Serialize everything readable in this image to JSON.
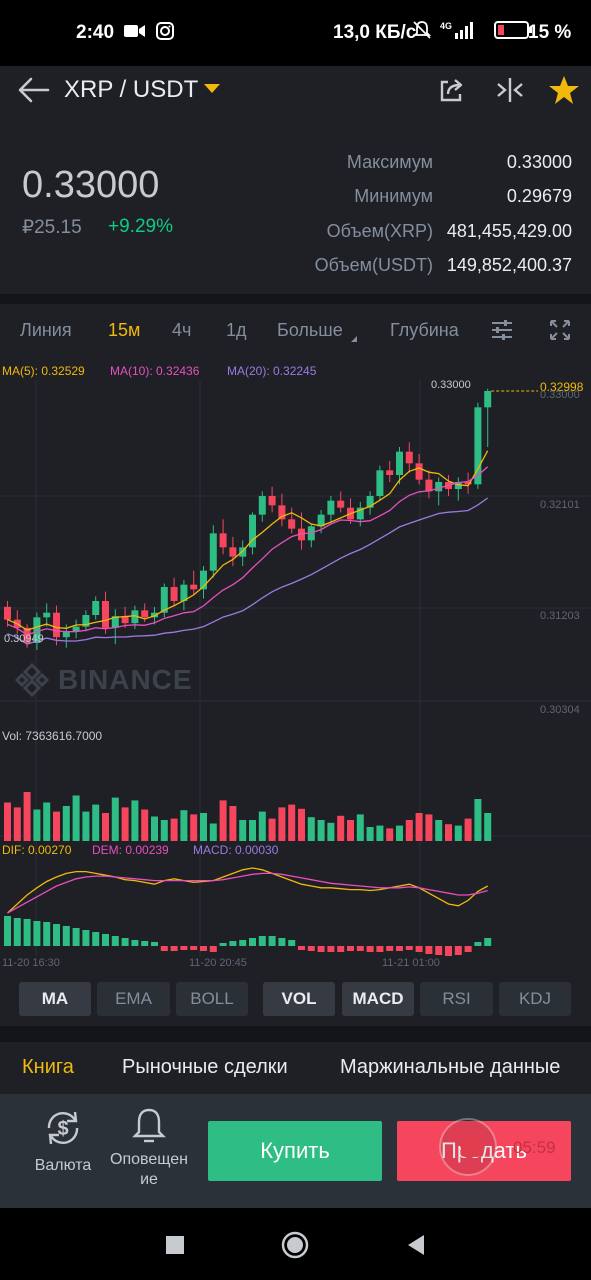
{
  "status_bar": {
    "time": "2:40",
    "network_speed": "13,0 КБ/с",
    "network_type": "4G",
    "battery": "15 %",
    "icons": [
      "video-camera-icon",
      "instagram-icon",
      "bell-muted-icon",
      "signal-icon",
      "battery-icon"
    ]
  },
  "header": {
    "pair": "XRP / USDT",
    "icons": [
      "back-arrow-icon",
      "share-icon",
      "compare-icon",
      "star-icon"
    ],
    "accent": "#f0b90b"
  },
  "ticker": {
    "last_price": "0.33000",
    "fiat_price": "₽25.15",
    "change": "+9.29%",
    "stats": [
      {
        "label": "Максимум",
        "value": "0.33000"
      },
      {
        "label": "Минимум",
        "value": "0.29679"
      },
      {
        "label": "Объем(XRP)",
        "value": "481,455,429.00"
      },
      {
        "label": "Объем(USDT)",
        "value": "149,852,400.37"
      }
    ]
  },
  "intervals": {
    "items": [
      "Линия",
      "15м",
      "4ч",
      "1д",
      "Больше",
      "Глубина"
    ],
    "active": "15м",
    "icons": [
      "settings-sliders-icon",
      "fullscreen-icon"
    ]
  },
  "chart": {
    "ma_legend": [
      {
        "text": "MA(5): 0.32529",
        "color": "#f0b90b"
      },
      {
        "text": "MA(10): 0.32436",
        "color": "#e84fbf"
      },
      {
        "text": "MA(20): 0.32245",
        "color": "#9b7be0"
      }
    ],
    "price_axis": [
      "0.33000",
      "0.32101",
      "0.31203",
      "0.30304"
    ],
    "high_marker": "0.33000",
    "last_price_marker": "0.32998",
    "low_marker": "0.30949",
    "watermark": "BINANCE",
    "vol_legend": "Vol: 7363616.7000",
    "macd_legend": [
      {
        "text": "DIF: 0.00270",
        "color": "#f0b90b"
      },
      {
        "text": "DEM: 0.00239",
        "color": "#e84fbf"
      },
      {
        "text": "MACD: 0.00030",
        "color": "#9b7be0"
      }
    ],
    "time_axis": [
      "11-20 16:30",
      "11-20 20:45",
      "11-21 01:00"
    ],
    "colors": {
      "up": "#2ebd85",
      "down": "#f6465d"
    }
  },
  "chart_data": {
    "type": "candlestick",
    "ohlc_series": [
      [
        0.3115,
        0.312,
        0.3098,
        0.3104
      ],
      [
        0.3104,
        0.3112,
        0.3092,
        0.3097
      ],
      [
        0.3097,
        0.31,
        0.308,
        0.3084
      ],
      [
        0.3084,
        0.311,
        0.3078,
        0.3106
      ],
      [
        0.3106,
        0.3118,
        0.3098,
        0.311
      ],
      [
        0.311,
        0.3116,
        0.3082,
        0.3089
      ],
      [
        0.3089,
        0.31,
        0.308,
        0.3094
      ],
      [
        0.3094,
        0.3104,
        0.3088,
        0.3098
      ],
      [
        0.3098,
        0.3112,
        0.3094,
        0.3108
      ],
      [
        0.3108,
        0.3124,
        0.3104,
        0.312
      ],
      [
        0.312,
        0.3128,
        0.3092,
        0.3097
      ],
      [
        0.3097,
        0.3113,
        0.3083,
        0.3107
      ],
      [
        0.3107,
        0.3115,
        0.3097,
        0.3101
      ],
      [
        0.3101,
        0.3116,
        0.3096,
        0.3112
      ],
      [
        0.3112,
        0.3118,
        0.3102,
        0.3106
      ],
      [
        0.3106,
        0.3115,
        0.31,
        0.311
      ],
      [
        0.311,
        0.3135,
        0.3106,
        0.3132
      ],
      [
        0.3132,
        0.314,
        0.3115,
        0.312
      ],
      [
        0.312,
        0.3138,
        0.3112,
        0.3134
      ],
      [
        0.3134,
        0.3146,
        0.3126,
        0.313
      ],
      [
        0.313,
        0.315,
        0.3122,
        0.3146
      ],
      [
        0.3146,
        0.3185,
        0.314,
        0.3178
      ],
      [
        0.3178,
        0.319,
        0.316,
        0.3166
      ],
      [
        0.3166,
        0.3175,
        0.315,
        0.3158
      ],
      [
        0.3158,
        0.3172,
        0.315,
        0.3166
      ],
      [
        0.3166,
        0.3196,
        0.316,
        0.3194
      ],
      [
        0.3194,
        0.3214,
        0.3188,
        0.321
      ],
      [
        0.321,
        0.3218,
        0.3196,
        0.3202
      ],
      [
        0.3202,
        0.3212,
        0.3184,
        0.319
      ],
      [
        0.319,
        0.32,
        0.3178,
        0.3182
      ],
      [
        0.3182,
        0.3196,
        0.3164,
        0.3172
      ],
      [
        0.3172,
        0.3186,
        0.3166,
        0.3184
      ],
      [
        0.3184,
        0.3198,
        0.3178,
        0.3194
      ],
      [
        0.3194,
        0.321,
        0.3188,
        0.3206
      ],
      [
        0.3206,
        0.3214,
        0.3196,
        0.32
      ],
      [
        0.32,
        0.3208,
        0.3186,
        0.319
      ],
      [
        0.319,
        0.3205,
        0.3184,
        0.32
      ],
      [
        0.32,
        0.3214,
        0.3194,
        0.321
      ],
      [
        0.321,
        0.3236,
        0.3206,
        0.3232
      ],
      [
        0.3232,
        0.324,
        0.3222,
        0.3228
      ],
      [
        0.3228,
        0.3252,
        0.322,
        0.3248
      ],
      [
        0.3248,
        0.3256,
        0.323,
        0.3238
      ],
      [
        0.3238,
        0.3246,
        0.322,
        0.3224
      ],
      [
        0.3224,
        0.3232,
        0.3208,
        0.3214
      ],
      [
        0.3214,
        0.3226,
        0.3202,
        0.3222
      ],
      [
        0.3222,
        0.3228,
        0.321,
        0.3216
      ],
      [
        0.3216,
        0.3226,
        0.3206,
        0.3222
      ],
      [
        0.3222,
        0.323,
        0.3212,
        0.322
      ],
      [
        0.322,
        0.329,
        0.3216,
        0.3286
      ],
      [
        0.3286,
        0.3302,
        0.3252,
        0.33
      ]
    ],
    "volume": [
      0.55,
      0.48,
      0.7,
      0.45,
      0.55,
      0.42,
      0.5,
      0.65,
      0.42,
      0.52,
      0.4,
      0.62,
      0.48,
      0.58,
      0.45,
      0.35,
      0.3,
      0.32,
      0.44,
      0.38,
      0.4,
      0.25,
      0.58,
      0.5,
      0.3,
      0.3,
      0.42,
      0.32,
      0.48,
      0.52,
      0.46,
      0.34,
      0.3,
      0.26,
      0.36,
      0.3,
      0.38,
      0.2,
      0.22,
      0.18,
      0.22,
      0.3,
      0.4,
      0.38,
      0.3,
      0.24,
      0.22,
      0.32,
      0.6,
      0.4
    ],
    "macd_hist": [
      0.3,
      0.28,
      0.27,
      0.25,
      0.24,
      0.22,
      0.2,
      0.18,
      0.16,
      0.14,
      0.12,
      0.1,
      0.08,
      0.06,
      0.05,
      0.04,
      -0.05,
      -0.05,
      -0.04,
      -0.04,
      -0.05,
      -0.06,
      0.03,
      0.05,
      0.06,
      0.08,
      0.1,
      0.1,
      0.08,
      0.06,
      -0.04,
      -0.05,
      -0.06,
      -0.06,
      -0.06,
      -0.05,
      -0.05,
      -0.06,
      -0.06,
      -0.05,
      -0.05,
      -0.04,
      -0.06,
      -0.08,
      -0.09,
      -0.1,
      -0.09,
      -0.06,
      0.04,
      0.08
    ],
    "dif": [
      0.2,
      0.3,
      0.4,
      0.48,
      0.55,
      0.6,
      0.64,
      0.66,
      0.66,
      0.64,
      0.62,
      0.6,
      0.57,
      0.56,
      0.54,
      0.52,
      0.56,
      0.58,
      0.56,
      0.54,
      0.55,
      0.56,
      0.6,
      0.64,
      0.68,
      0.7,
      0.68,
      0.64,
      0.6,
      0.56,
      0.52,
      0.5,
      0.48,
      0.48,
      0.47,
      0.46,
      0.46,
      0.45,
      0.46,
      0.48,
      0.5,
      0.52,
      0.48,
      0.42,
      0.36,
      0.3,
      0.28,
      0.34,
      0.44,
      0.5
    ],
    "dem": [
      0.2,
      0.26,
      0.32,
      0.38,
      0.44,
      0.5,
      0.54,
      0.58,
      0.6,
      0.61,
      0.61,
      0.6,
      0.59,
      0.58,
      0.57,
      0.56,
      0.56,
      0.56,
      0.56,
      0.56,
      0.56,
      0.56,
      0.57,
      0.59,
      0.61,
      0.63,
      0.64,
      0.64,
      0.63,
      0.61,
      0.59,
      0.57,
      0.55,
      0.53,
      0.52,
      0.51,
      0.5,
      0.49,
      0.48,
      0.48,
      0.48,
      0.49,
      0.48,
      0.46,
      0.44,
      0.42,
      0.4,
      0.4,
      0.42,
      0.45
    ]
  },
  "indicators": {
    "main": [
      "MA",
      "EMA",
      "BOLL"
    ],
    "sub": [
      "VOL",
      "MACD",
      "RSI",
      "KDJ"
    ],
    "active": [
      "MA",
      "VOL",
      "MACD"
    ]
  },
  "tabs": {
    "items": [
      "Книга",
      "Рыночные сделки",
      "Маржинальные данные"
    ],
    "active": "Книга"
  },
  "bottom_bar": {
    "currency_label": "Валюта",
    "alerts_label_line1": "Оповещен",
    "alerts_label_line2": "ие",
    "buy_label": "Купить",
    "sell_label": "Продать",
    "recording_time": "05:59"
  }
}
